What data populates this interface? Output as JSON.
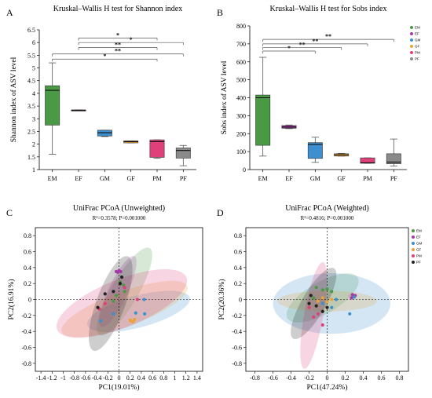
{
  "chart_data": [
    {
      "panel": "A",
      "type": "box",
      "title": "Kruskal–Wallis H test for Shannon index",
      "ylabel": "Shannon index of ASV level",
      "xlabel": "",
      "categories": [
        "EM",
        "EF",
        "GM",
        "GF",
        "PM",
        "PF"
      ],
      "ylim": [
        1,
        6.5
      ],
      "yticks": [
        "1",
        "1.5",
        "2",
        "2.5",
        "3",
        "3.5",
        "4",
        "4.5",
        "5",
        "5.5",
        "6",
        "6.5"
      ],
      "boxes": [
        {
          "name": "EM",
          "min": 1.6,
          "q1": 2.75,
          "median": 4.12,
          "q3": 4.3,
          "max": 5.2,
          "color": "#4a9a45"
        },
        {
          "name": "EF",
          "min": 3.33,
          "q1": 3.33,
          "median": 3.33,
          "q3": 3.35,
          "max": 3.35,
          "color": "#a43aa6"
        },
        {
          "name": "GM",
          "min": 2.3,
          "q1": 2.32,
          "median": 2.45,
          "q3": 2.55,
          "max": 2.55,
          "color": "#3d8fcf"
        },
        {
          "name": "GF",
          "min": 2.05,
          "q1": 2.05,
          "median": 2.1,
          "q3": 2.13,
          "max": 2.13,
          "color": "#e9a33b"
        },
        {
          "name": "PM",
          "min": 1.45,
          "q1": 1.48,
          "median": 2.1,
          "q3": 2.17,
          "max": 2.17,
          "color": "#e0407a"
        },
        {
          "name": "PF",
          "min": 1.15,
          "q1": 1.45,
          "median": 1.75,
          "q3": 1.85,
          "max": 1.95,
          "color": "#8a8a8a"
        }
      ],
      "significance": [
        {
          "from": "EM",
          "to": "PM",
          "level": 5.35,
          "label": "*"
        },
        {
          "from": "EM",
          "to": "PF",
          "level": 5.55,
          "label": "**"
        },
        {
          "from": "EF",
          "to": "PM",
          "level": 5.8,
          "label": "**"
        },
        {
          "from": "EF",
          "to": "PF",
          "level": 6.0,
          "label": "*"
        },
        {
          "from": "EF",
          "to": "PM",
          "level": 6.18,
          "label": "*"
        }
      ]
    },
    {
      "panel": "B",
      "type": "box",
      "title": "Kruskal–Wallis H test for Sobs index",
      "ylabel": "Sobs index of ASV level",
      "xlabel": "",
      "categories": [
        "EM",
        "EF",
        "GM",
        "GF",
        "PM",
        "PF"
      ],
      "ylim": [
        0,
        800
      ],
      "yticks": [
        "0",
        "100",
        "200",
        "300",
        "400",
        "500",
        "600",
        "700",
        "800"
      ],
      "boxes": [
        {
          "name": "EM",
          "min": 75,
          "q1": 135,
          "median": 400,
          "q3": 415,
          "max": 625,
          "color": "#4a9a45"
        },
        {
          "name": "EF",
          "min": 228,
          "q1": 230,
          "median": 237,
          "q3": 245,
          "max": 248,
          "color": "#a43aa6"
        },
        {
          "name": "GM",
          "min": 40,
          "q1": 62,
          "median": 140,
          "q3": 150,
          "max": 180,
          "color": "#3d8fcf"
        },
        {
          "name": "GF",
          "min": 75,
          "q1": 75,
          "median": 82,
          "q3": 88,
          "max": 90,
          "color": "#e9a33b"
        },
        {
          "name": "PM",
          "min": 35,
          "q1": 35,
          "median": 38,
          "q3": 65,
          "max": 65,
          "color": "#e0407a"
        },
        {
          "name": "PF",
          "min": 20,
          "q1": 32,
          "median": 42,
          "q3": 88,
          "max": 170,
          "color": "#8a8a8a"
        }
      ],
      "significance": [
        {
          "from": "EM",
          "to": "GM",
          "level": 660,
          "label": "*"
        },
        {
          "from": "EM",
          "to": "GF",
          "level": 680,
          "label": "**"
        },
        {
          "from": "EM",
          "to": "PM",
          "level": 700,
          "label": "**"
        },
        {
          "from": "EM",
          "to": "PF",
          "level": 725,
          "label": "**"
        }
      ],
      "legend": [
        "EM",
        "EF",
        "GM",
        "GF",
        "PM",
        "PF"
      ],
      "legend_placement": "right"
    },
    {
      "panel": "C",
      "type": "scatter",
      "title": "UniFrac PCoA (Unweighted)",
      "subtitle": "R²=0.3578; P=0.001000",
      "xlabel": "PC1(19.01%)",
      "ylabel": "PC2(16.91%)",
      "xlim": [
        -1.5,
        1.5
      ],
      "ylim": [
        -0.9,
        0.9
      ],
      "xticks": [
        "-1.4",
        "-1.2",
        "-1",
        "-0.8",
        "-0.6",
        "-0.4",
        "-0.2",
        "0",
        "0.2",
        "0.4",
        "0.6",
        "0.8",
        "1",
        "1.2",
        "1.4"
      ],
      "yticks": [
        "-0.8",
        "-0.6",
        "-0.4",
        "-0.2",
        "0",
        "0.2",
        "0.4",
        "0.6",
        "0.8"
      ],
      "series": [
        {
          "name": "EM",
          "color": "#4a9a45",
          "points": [
            [
              0.02,
              0.22
            ],
            [
              0.08,
              0.18
            ],
            [
              -0.05,
              0.05
            ],
            [
              0.1,
              0.1
            ],
            [
              -0.1,
              -0.02
            ]
          ]
        },
        {
          "name": "EF",
          "color": "#a43aa6",
          "points": [
            [
              -0.05,
              0.35
            ],
            [
              0.0,
              0.36
            ],
            [
              0.03,
              0.35
            ],
            [
              -0.02,
              0.34
            ]
          ]
        },
        {
          "name": "GM",
          "color": "#3d8fcf",
          "points": [
            [
              -0.33,
              -0.27
            ],
            [
              0.3,
              -0.17
            ],
            [
              0.46,
              -0.18
            ],
            [
              0.45,
              0.0
            ],
            [
              -0.1,
              -0.18
            ]
          ]
        },
        {
          "name": "GF",
          "color": "#e9a33b",
          "points": [
            [
              0.22,
              -0.27
            ],
            [
              0.25,
              -0.28
            ],
            [
              0.2,
              -0.26
            ],
            [
              0.28,
              -0.25
            ]
          ]
        },
        {
          "name": "PM",
          "color": "#e0407a",
          "points": [
            [
              -0.35,
              -0.12
            ],
            [
              0.1,
              0.15
            ],
            [
              0.33,
              0.0
            ],
            [
              -0.25,
              -0.05
            ]
          ]
        },
        {
          "name": "PF",
          "color": "#222222",
          "points": [
            [
              -0.25,
              0.07
            ],
            [
              -0.1,
              0.1
            ],
            [
              0.02,
              0.2
            ],
            [
              -0.38,
              -0.1
            ],
            [
              0.05,
              0.28
            ]
          ]
        }
      ],
      "ellipses": [
        {
          "name": "EM",
          "color": "#4a9a45",
          "cx": 0.1,
          "cy": 0.1,
          "rx": 0.9,
          "ry": 0.17,
          "angle": 60
        },
        {
          "name": "EF",
          "color": "#a43aa6",
          "cx": -0.02,
          "cy": 0.1,
          "rx": 0.7,
          "ry": 0.12,
          "angle": 65
        },
        {
          "name": "GM",
          "color": "#3d8fcf",
          "cx": 0.35,
          "cy": -0.15,
          "rx": 0.95,
          "ry": 0.2,
          "angle": 15
        },
        {
          "name": "GF",
          "color": "#e9a33b",
          "cx": 0.1,
          "cy": -0.12,
          "rx": 1.2,
          "ry": 0.22,
          "angle": 20
        },
        {
          "name": "PM",
          "color": "#e0407a",
          "cx": 0.05,
          "cy": -0.05,
          "rx": 1.25,
          "ry": 0.3,
          "angle": 22
        },
        {
          "name": "PF",
          "color": "#222222",
          "cx": -0.15,
          "cy": -0.05,
          "rx": 0.9,
          "ry": 0.18,
          "angle": 70
        }
      ]
    },
    {
      "panel": "D",
      "type": "scatter",
      "title": "UniFrac PCoA (Weighted)",
      "subtitle": "R²=0.4816; P=0.001000",
      "xlabel": "PC1(47.24%)",
      "ylabel": "PC2(20.36%)",
      "xlim": [
        -0.9,
        0.9
      ],
      "ylim": [
        -0.9,
        0.9
      ],
      "xticks": [
        "-0.8",
        "-0.6",
        "-0.4",
        "-0.2",
        "0",
        "0.2",
        "0.4",
        "0.6",
        "0.8"
      ],
      "yticks": [
        "-0.8",
        "-0.6",
        "-0.4",
        "-0.2",
        "0",
        "0.2",
        "0.4",
        "0.6",
        "0.8"
      ],
      "series": [
        {
          "name": "EM",
          "color": "#4a9a45",
          "points": [
            [
              -0.12,
              0.15
            ],
            [
              -0.05,
              0.12
            ],
            [
              0.05,
              0.1
            ],
            [
              -0.15,
              0.02
            ],
            [
              0.0,
              0.13
            ]
          ]
        },
        {
          "name": "EF",
          "color": "#a43aa6",
          "points": [
            [
              0.28,
              0.06
            ],
            [
              0.3,
              0.04
            ],
            [
              0.27,
              0.02
            ],
            [
              0.31,
              0.05
            ]
          ]
        },
        {
          "name": "GM",
          "color": "#3d8fcf",
          "points": [
            [
              0.1,
              0.0
            ],
            [
              0.25,
              -0.18
            ],
            [
              -0.05,
              -0.05
            ],
            [
              0.05,
              -0.1
            ],
            [
              0.3,
              0.03
            ]
          ]
        },
        {
          "name": "GF",
          "color": "#e9a33b",
          "points": [
            [
              -0.1,
              -0.02
            ],
            [
              0.05,
              0.0
            ],
            [
              -0.05,
              0.02
            ],
            [
              0.0,
              -0.03
            ]
          ]
        },
        {
          "name": "PM",
          "color": "#e0407a",
          "points": [
            [
              -0.15,
              -0.22
            ],
            [
              -0.05,
              -0.32
            ],
            [
              -0.2,
              -0.1
            ],
            [
              -0.1,
              -0.18
            ]
          ]
        },
        {
          "name": "PF",
          "color": "#222222",
          "points": [
            [
              -0.2,
              -0.05
            ],
            [
              -0.05,
              -0.15
            ],
            [
              0.0,
              -0.1
            ],
            [
              -0.12,
              -0.08
            ],
            [
              -0.18,
              0.05
            ]
          ]
        }
      ],
      "ellipses": [
        {
          "name": "EM",
          "color": "#4a9a45",
          "cx": -0.05,
          "cy": 0.02,
          "rx": 0.45,
          "ry": 0.2,
          "angle": 30
        },
        {
          "name": "EF",
          "color": "#a43aa6",
          "cx": 0.28,
          "cy": 0.04,
          "rx": 0.05,
          "ry": 0.03,
          "angle": 0
        },
        {
          "name": "GM",
          "color": "#3d8fcf",
          "cx": 0.05,
          "cy": -0.05,
          "rx": 0.65,
          "ry": 0.38,
          "angle": 0
        },
        {
          "name": "GF",
          "color": "#e9a33b",
          "cx": 0.0,
          "cy": -0.02,
          "rx": 0.55,
          "ry": 0.13,
          "angle": 0
        },
        {
          "name": "PM",
          "color": "#e0407a",
          "cx": -0.15,
          "cy": -0.2,
          "rx": 0.6,
          "ry": 0.12,
          "angle": 80
        },
        {
          "name": "PF",
          "color": "#222222",
          "cx": -0.15,
          "cy": -0.05,
          "rx": 0.45,
          "ry": 0.15,
          "angle": 60
        }
      ],
      "legend": [
        "EM",
        "EF",
        "GM",
        "GF",
        "PM",
        "PF"
      ],
      "legend_placement": "right"
    }
  ]
}
